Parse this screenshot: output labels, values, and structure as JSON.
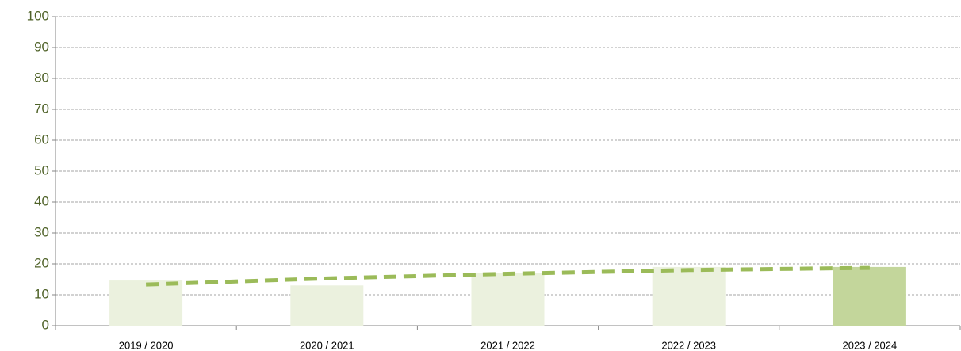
{
  "chart_data": {
    "type": "bar",
    "categories": [
      "2019 / 2020",
      "2020 / 2021",
      "2021 / 2022",
      "2022 / 2023",
      "2023 / 2024"
    ],
    "series": [
      {
        "type": "bar",
        "values": [
          14.6,
          13,
          17,
          19,
          19
        ],
        "colors": [
          "#ebf1de",
          "#ebf1de",
          "#ebf1de",
          "#ebf1de",
          "#c3d69b"
        ]
      },
      {
        "type": "line",
        "values": [
          13.3,
          15.3,
          16.8,
          18,
          18.7
        ],
        "color": "#9bbb59",
        "dashed": true
      }
    ],
    "ylim": [
      0,
      100
    ],
    "yticks": [
      0,
      10,
      20,
      30,
      40,
      50,
      60,
      70,
      80,
      90,
      100
    ],
    "grid": true,
    "grid_style": "dashed"
  }
}
